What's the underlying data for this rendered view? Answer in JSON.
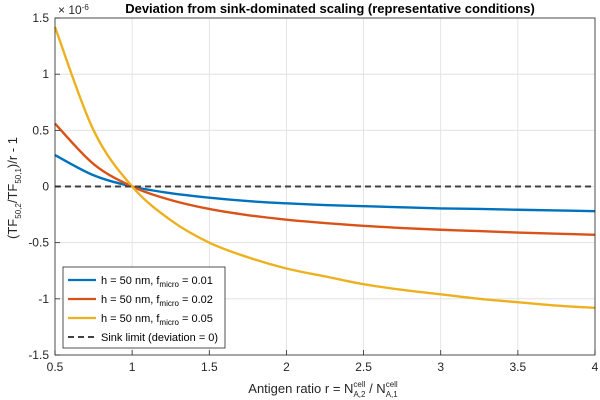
{
  "chart_data": {
    "type": "line",
    "title": "Deviation from sink-dominated scaling (representative conditions)",
    "exponent_label": "× 10",
    "exponent_value": "-6",
    "xlabel": {
      "prefix": "Antigen ratio r = N",
      "sup1": "cell",
      "sub1": "A,2",
      "mid": " / N",
      "sup2": "cell",
      "sub2": "A,1"
    },
    "ylabel": {
      "p1": "(TF",
      "s1": "50,2",
      "p2": "/TF",
      "s2": "50,1",
      "p3": ")/r - 1"
    },
    "xlim": [
      0.5,
      4
    ],
    "ylim": [
      -1.5,
      1.5
    ],
    "xticks": [
      0.5,
      1,
      1.5,
      2,
      2.5,
      3,
      3.5,
      4
    ],
    "xtick_labels": [
      "0.5",
      "1",
      "1.5",
      "2",
      "2.5",
      "3",
      "3.5",
      "4"
    ],
    "yticks": [
      -1.5,
      -1,
      -0.5,
      0,
      0.5,
      1,
      1.5
    ],
    "ytick_labels": [
      "-1.5",
      "-1",
      "-0.5",
      "0",
      "0.5",
      "1",
      "1.5"
    ],
    "x": [
      0.5,
      0.75,
      1.0,
      1.25,
      1.5,
      1.75,
      2.0,
      2.25,
      2.5,
      2.75,
      3.0,
      3.25,
      3.5,
      3.75,
      4.0
    ],
    "series": [
      {
        "name": "h = 50 nm, f_micro = 0.01",
        "color": "#0072BD",
        "values": [
          0.28,
          0.1,
          0.0,
          -0.06,
          -0.1,
          -0.13,
          -0.15,
          -0.165,
          -0.175,
          -0.185,
          -0.195,
          -0.2,
          -0.207,
          -0.213,
          -0.22
        ]
      },
      {
        "name": "h = 50 nm, f_micro = 0.02",
        "color": "#D95319",
        "values": [
          0.56,
          0.2,
          0.0,
          -0.12,
          -0.2,
          -0.255,
          -0.295,
          -0.325,
          -0.35,
          -0.37,
          -0.385,
          -0.397,
          -0.41,
          -0.42,
          -0.43
        ]
      },
      {
        "name": "h = 50 nm, f_micro = 0.05",
        "color": "#EDB120",
        "values": [
          1.42,
          0.5,
          0.0,
          -0.3,
          -0.5,
          -0.63,
          -0.73,
          -0.8,
          -0.87,
          -0.92,
          -0.96,
          -1.0,
          -1.03,
          -1.06,
          -1.08
        ]
      },
      {
        "name": "Sink limit (deviation = 0)",
        "color": "#404040",
        "dashed": true,
        "values": [
          0,
          0,
          0,
          0,
          0,
          0,
          0,
          0,
          0,
          0,
          0,
          0,
          0,
          0,
          0
        ]
      }
    ],
    "legend": [
      {
        "pre": "h = 50 nm, f",
        "sub": "micro",
        "post": " = 0.01"
      },
      {
        "pre": "h = 50 nm, f",
        "sub": "micro",
        "post": " = 0.02"
      },
      {
        "pre": "h = 50 nm, f",
        "sub": "micro",
        "post": " = 0.05"
      },
      {
        "pre": "Sink limit (deviation = 0)",
        "sub": "",
        "post": ""
      }
    ],
    "legend_position": "bottom-left",
    "grid": true
  }
}
